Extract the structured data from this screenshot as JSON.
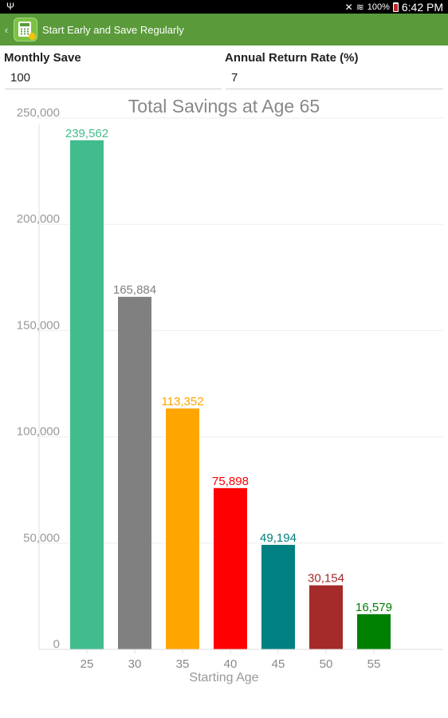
{
  "status_bar": {
    "usb_icon": "usb-icon",
    "battery_percent": "100%",
    "time": "6:42 PM"
  },
  "app_bar": {
    "title": "Start Early and Save Regularly",
    "icon": "calculator-icon"
  },
  "form": {
    "monthly_save_label": "Monthly Save",
    "monthly_save_value": "100",
    "annual_rate_label": "Annual Return Rate (%)",
    "annual_rate_value": "7"
  },
  "chart_data": {
    "type": "bar",
    "title": "Total Savings at Age 65",
    "xlabel": "Starting Age",
    "ylabel": "",
    "ylim": [
      0,
      250000
    ],
    "yticks": [
      "0",
      "50,000",
      "100,000",
      "150,000",
      "200,000",
      "250,000"
    ],
    "categories": [
      "25",
      "30",
      "35",
      "40",
      "45",
      "50",
      "55"
    ],
    "values": [
      239562,
      165884,
      113352,
      75898,
      49194,
      30154,
      16579
    ],
    "value_labels": [
      "239,562",
      "165,884",
      "113,352",
      "75,898",
      "49,194",
      "30,154",
      "16,579"
    ],
    "colors": [
      "#41bc8c",
      "#808080",
      "#ffa500",
      "#ff0000",
      "#008080",
      "#a52a2a",
      "#008000"
    ],
    "grid": true
  }
}
